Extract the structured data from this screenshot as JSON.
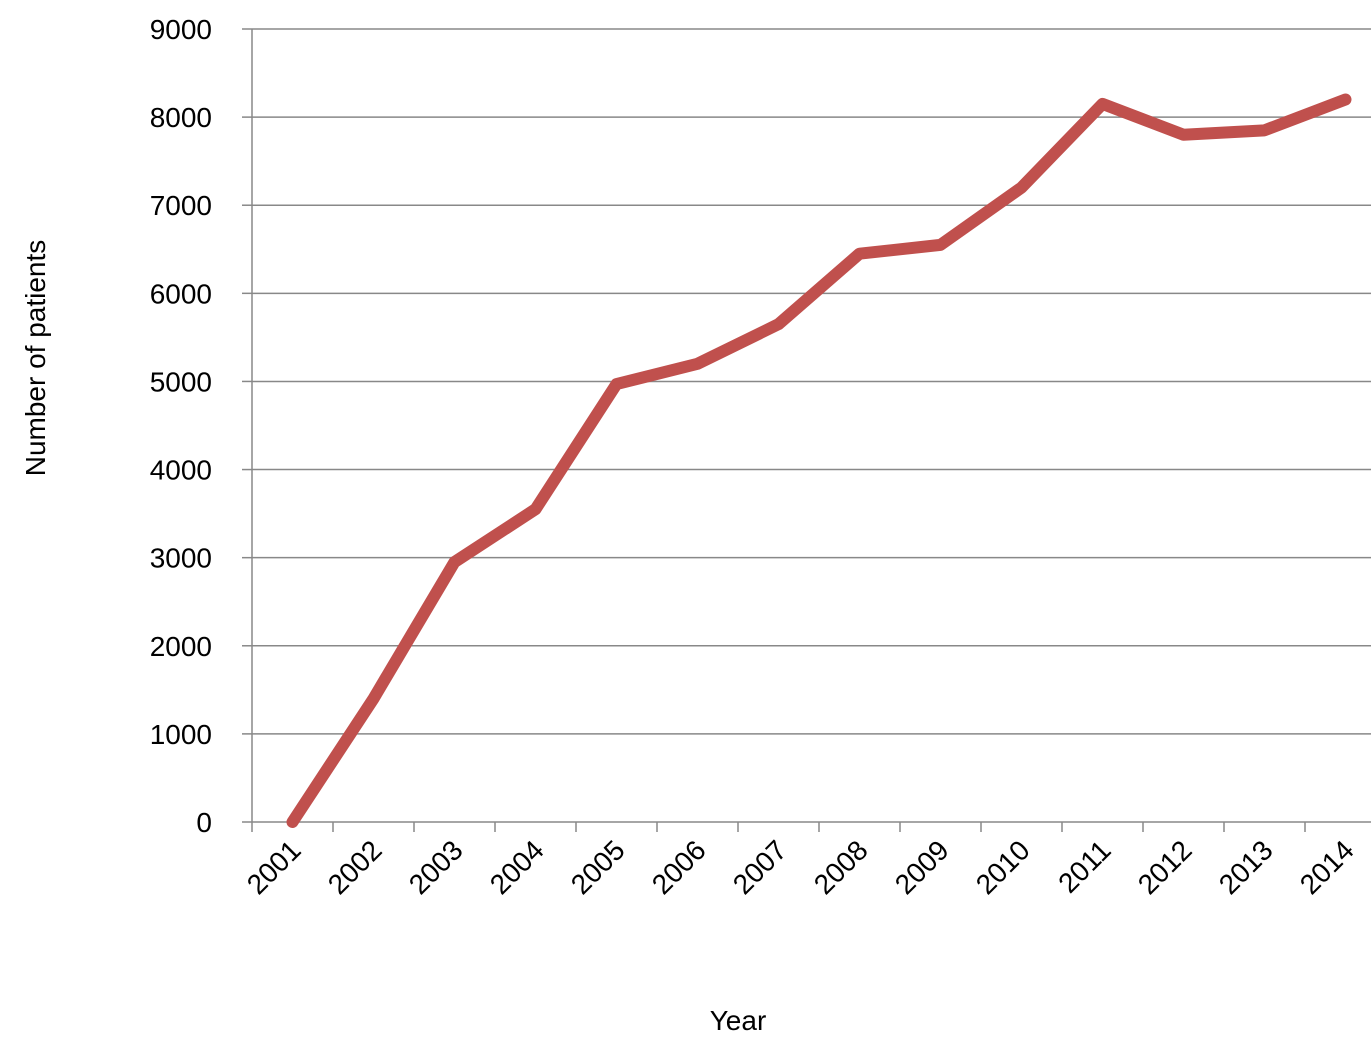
{
  "chart_data": {
    "type": "line",
    "x_label": "Year",
    "y_label": "Number of patients",
    "categories": [
      "2001",
      "2002",
      "2003",
      "2004",
      "2005",
      "2006",
      "2007",
      "2008",
      "2009",
      "2010",
      "2011",
      "2012",
      "2013",
      "2014"
    ],
    "series": [
      {
        "name": "Number of patients",
        "color": "#c0504d",
        "values": [
          0,
          1400,
          2950,
          3550,
          4970,
          5200,
          5650,
          6450,
          6550,
          7200,
          8150,
          7800,
          7850,
          8200
        ]
      }
    ],
    "ylim": [
      0,
      9000
    ],
    "yticks": [
      0,
      1000,
      2000,
      3000,
      4000,
      5000,
      6000,
      7000,
      8000,
      9000
    ],
    "grid": true
  }
}
